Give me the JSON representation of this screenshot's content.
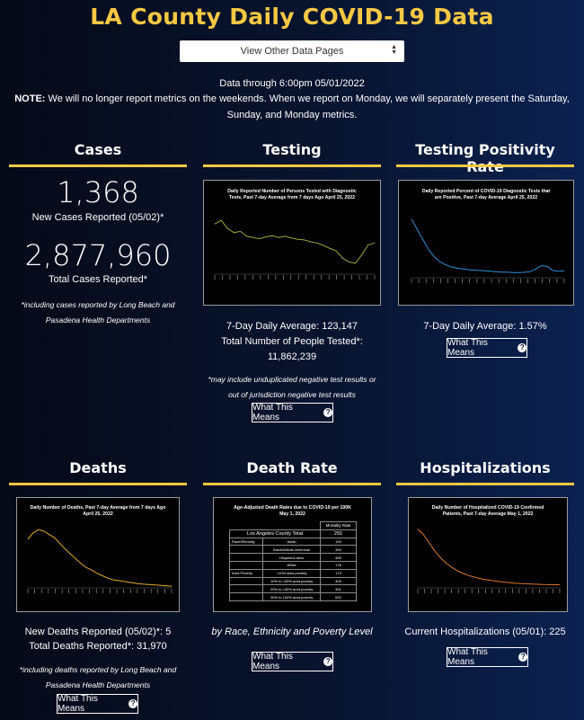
{
  "header": {
    "title": "LA County Daily COVID-19 Data",
    "select_value": "View Other Data Pages",
    "data_through": "Data through 6:00pm 05/01/2022",
    "note_label": "NOTE:",
    "note_text": " We will no longer report metrics on the weekends. When we report on Monday, we will separately present the Saturday, Sunday, and Monday metrics."
  },
  "cases": {
    "title": "Cases",
    "new_cases": "1,368",
    "new_cases_label": "New Cases Reported (05/02)*",
    "total_cases": "2,877,960",
    "total_cases_label": "Total Cases Reported*",
    "footnote": "*including cases reported by Long Beach and Pasadena Health Departments"
  },
  "testing": {
    "title": "Testing",
    "chart_title": "Daily Reported Number of Persons Tested with Diagnostic Tests, Past 7-day Average from 7 days Ago April 25, 2022",
    "avg_label": "7-Day Daily Average: 123,147",
    "total_label": "Total Number of People Tested*: 11,862,239",
    "footnote": "*may include unduplicated negative test results or out of jurisdiction negative test results",
    "button": "What This Means"
  },
  "positivity": {
    "title": "Testing Positivity Rate",
    "chart_title": "Daily Reported Percent of COVID-19 Diagnostic Tests that are Positive, Past 7-day Average April 25, 2022",
    "avg_label": "7-Day Daily Average: 1.57%",
    "button": "What This Means"
  },
  "deaths": {
    "title": "Deaths",
    "chart_title": "Daily Number of Deaths, Past 7-day Average from 7 days Ago April 25, 2022",
    "new_label": "New Deaths Reported (05/02)*: 5",
    "total_label": "Total Deaths Reported*: 31,970",
    "footnote": "*including deaths reported by Long Beach and Pasadena Health Departments",
    "button": "What This Means"
  },
  "death_rate": {
    "title": "Death Rate",
    "table_title": "Age-Adjusted Death Rates due to COVID-19 per 100K May 1, 2022",
    "col_header": "Mortality Rate",
    "total_label": "Los Angeles County Total",
    "total_value": "291",
    "group_race": "Race/Ethnicity",
    "group_poverty": "Area Poverty",
    "rows": [
      {
        "group": "Race/Ethnicity",
        "label": "Asian",
        "value": "194"
      },
      {
        "group": "",
        "label": "Black/African American",
        "value": "349"
      },
      {
        "group": "",
        "label": "Hispanic/Latino",
        "value": "459"
      },
      {
        "group": "",
        "label": "White",
        "value": "176"
      },
      {
        "group": "Area Poverty",
        "label": "<10% area poverty",
        "value": "173"
      },
      {
        "group": "",
        "label": "10% to <20% area poverty",
        "value": "300"
      },
      {
        "group": "",
        "label": "20% to <30% area poverty",
        "value": "391"
      },
      {
        "group": "",
        "label": "30% to 100% area poverty",
        "value": "532"
      }
    ],
    "subtitle": "by Race, Ethnicity and Poverty Level",
    "button": "What This Means"
  },
  "hospitalizations": {
    "title": "Hospitalizations",
    "chart_title": "Daily Number of Hospitalized COVID-19 Confirmed Patients, Past 7-day Average May 1, 2022",
    "current_label": "Current Hospitalizations (05/01): 225",
    "button": "What This Means"
  },
  "colors": {
    "accent": "#f7c843",
    "testing_line": "#9aa83a",
    "positivity_line": "#2e8fd6",
    "deaths_line": "#e0a82a",
    "hosp_line": "#d9782a",
    "chart_bg": "#000000"
  },
  "chart_data": [
    {
      "type": "line",
      "title": "Daily Reported Number of Persons Tested with Diagnostic Tests, Past 7-day Average from 7 days Ago April 25, 2022",
      "series": [
        {
          "values": [
            172000,
            178000,
            165000,
            158000,
            160000,
            152000,
            150000,
            148000,
            151000,
            153000,
            150000,
            152000,
            149000,
            147000,
            146000,
            143000,
            141000,
            137000,
            132000,
            128000,
            116000,
            110000,
            108000,
            122000,
            138000,
            141000
          ]
        }
      ]
    },
    {
      "type": "line",
      "title": "Daily Reported Percent of COVID-19 Diagnostic Tests that are Positive, Past 7-day Average April 25, 2022",
      "series": [
        {
          "values": [
            14.5,
            12.0,
            9.5,
            7.0,
            5.2,
            4.0,
            3.2,
            2.7,
            2.4,
            2.2,
            2.0,
            1.9,
            1.8,
            1.7,
            1.6,
            1.5,
            1.4,
            1.4,
            1.3,
            1.3,
            1.35,
            1.5,
            2.2,
            3.0,
            2.8,
            1.8,
            1.6,
            1.7
          ]
        }
      ]
    },
    {
      "type": "line",
      "title": "Daily Number of Deaths, Past 7-day Average from 7 days Ago April 25, 2022",
      "series": [
        {
          "values": [
            60,
            68,
            72,
            70,
            66,
            62,
            55,
            48,
            42,
            36,
            30,
            25,
            22,
            18,
            15,
            12,
            10,
            9,
            8,
            7,
            6,
            5,
            4.5,
            4,
            3.5,
            3,
            2.5,
            2
          ]
        }
      ]
    },
    {
      "type": "line",
      "title": "Daily Number of Hospitalized COVID-19 Confirmed Patients, Past 7-day Average May 1, 2022",
      "series": [
        {
          "values": [
            4300,
            3900,
            3300,
            2700,
            2200,
            1800,
            1500,
            1250,
            1050,
            900,
            780,
            680,
            600,
            540,
            480,
            430,
            390,
            350,
            320,
            300,
            280,
            260,
            245,
            235,
            228,
            225
          ]
        }
      ]
    }
  ]
}
